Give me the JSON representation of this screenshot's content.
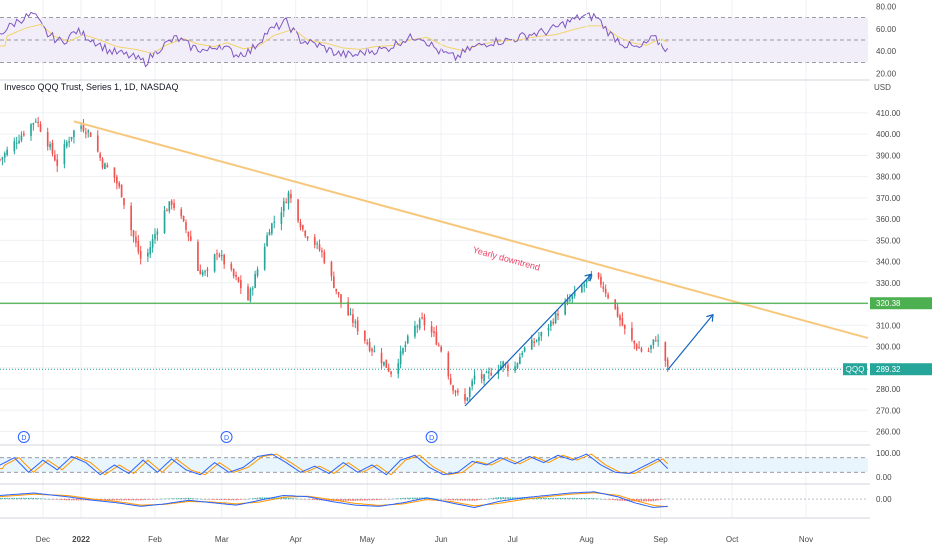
{
  "header": {
    "title": "Invesco QQQ Trust, Series 1, 1D, NASDAQ",
    "currency": "USD"
  },
  "colors": {
    "up": "#26a69a",
    "down": "#ef5350",
    "trendline": "#f7c77b",
    "support": "#4caf50",
    "arrow": "#1565c0",
    "rsi": "#7e57c2",
    "rsi_ma": "#f2d36b",
    "stoch_k": "#2962ff",
    "stoch_d": "#ff9800",
    "annotation": "#e8476a"
  },
  "chart_data": {
    "type": "candlestick",
    "title": "Invesco QQQ Trust, Series 1, 1D, NASDAQ",
    "symbol": "QQQ",
    "y_unit": "USD",
    "x_ticks": [
      "Dec",
      "2022",
      "Feb",
      "Mar",
      "Apr",
      "May",
      "Jun",
      "Jul",
      "Aug",
      "Sep",
      "Oct",
      "Nov"
    ],
    "x_tick_days": [
      -16,
      0,
      31,
      59,
      90,
      120,
      151,
      181,
      212,
      243,
      273,
      304
    ],
    "y_ticks": [
      410,
      400,
      390,
      380,
      370,
      360,
      350,
      340,
      330,
      320,
      310,
      300,
      290,
      280,
      270,
      260
    ],
    "ylim": [
      256,
      417
    ],
    "xlim_days": [
      -34,
      330
    ],
    "price_anchors": [
      [
        -34,
        388
      ],
      [
        -28,
        396
      ],
      [
        -23,
        402
      ],
      [
        -19,
        407
      ],
      [
        -14,
        396
      ],
      [
        -10,
        386
      ],
      [
        -6,
        396
      ],
      [
        -1,
        405
      ],
      [
        4,
        400
      ],
      [
        9,
        386
      ],
      [
        13,
        382
      ],
      [
        17,
        372
      ],
      [
        21,
        355
      ],
      [
        26,
        338
      ],
      [
        30,
        350
      ],
      [
        34,
        362
      ],
      [
        38,
        368
      ],
      [
        42,
        360
      ],
      [
        46,
        350
      ],
      [
        49,
        336
      ],
      [
        53,
        334
      ],
      [
        57,
        345
      ],
      [
        62,
        336
      ],
      [
        66,
        330
      ],
      [
        70,
        322
      ],
      [
        75,
        340
      ],
      [
        79,
        356
      ],
      [
        83,
        362
      ],
      [
        87,
        372
      ],
      [
        90,
        364
      ],
      [
        93,
        355
      ],
      [
        97,
        350
      ],
      [
        101,
        344
      ],
      [
        105,
        332
      ],
      [
        110,
        318
      ],
      [
        114,
        312
      ],
      [
        118,
        305
      ],
      [
        121,
        300
      ],
      [
        125,
        295
      ],
      [
        130,
        288
      ],
      [
        134,
        296
      ],
      [
        139,
        308
      ],
      [
        143,
        312
      ],
      [
        148,
        305
      ],
      [
        152,
        296
      ],
      [
        155,
        283
      ],
      [
        158,
        277
      ],
      [
        161,
        274
      ],
      [
        165,
        286
      ],
      [
        169,
        285
      ],
      [
        173,
        289
      ],
      [
        177,
        292
      ],
      [
        181,
        288
      ],
      [
        185,
        298
      ],
      [
        190,
        302
      ],
      [
        195,
        308
      ],
      [
        200,
        316
      ],
      [
        205,
        322
      ],
      [
        210,
        328
      ],
      [
        214,
        333
      ],
      [
        218,
        330
      ],
      [
        222,
        322
      ],
      [
        225,
        315
      ],
      [
        229,
        305
      ],
      [
        233,
        300
      ],
      [
        237,
        296
      ],
      [
        241,
        304
      ],
      [
        244,
        298
      ],
      [
        246,
        289
      ]
    ],
    "trendline_yearly_downtrend": {
      "label": "Yearly downtrend",
      "points": [
        [
          -3,
          406
        ],
        [
          330,
          304
        ]
      ]
    },
    "support_line": {
      "value": 320.38,
      "label": "320.38"
    },
    "last_price": {
      "value": 289.32,
      "label": "289.32",
      "symbol_tag": "QQQ"
    },
    "arrows": [
      {
        "from": [
          161,
          272
        ],
        "to": [
          214,
          334
        ]
      },
      {
        "from": [
          246,
          289
        ],
        "to": [
          265,
          315
        ]
      }
    ],
    "dividend_markers": {
      "label": "D",
      "days": [
        -24,
        61,
        147
      ]
    },
    "rsi": {
      "yticks": [
        80,
        60,
        40,
        20
      ],
      "ylim": [
        16,
        84
      ],
      "upper": 70,
      "mid": 50,
      "lower": 30,
      "anchors": [
        [
          -34,
          56
        ],
        [
          -26,
          68
        ],
        [
          -20,
          73
        ],
        [
          -14,
          55
        ],
        [
          -8,
          48
        ],
        [
          -2,
          58
        ],
        [
          5,
          50
        ],
        [
          12,
          40
        ],
        [
          20,
          36
        ],
        [
          27,
          30
        ],
        [
          33,
          43
        ],
        [
          40,
          52
        ],
        [
          46,
          44
        ],
        [
          53,
          40
        ],
        [
          58,
          46
        ],
        [
          65,
          37
        ],
        [
          71,
          40
        ],
        [
          78,
          57
        ],
        [
          86,
          66
        ],
        [
          92,
          50
        ],
        [
          100,
          45
        ],
        [
          107,
          38
        ],
        [
          114,
          36
        ],
        [
          120,
          40
        ],
        [
          128,
          42
        ],
        [
          135,
          50
        ],
        [
          142,
          54
        ],
        [
          150,
          40
        ],
        [
          157,
          34
        ],
        [
          163,
          42
        ],
        [
          171,
          48
        ],
        [
          180,
          50
        ],
        [
          188,
          55
        ],
        [
          196,
          58
        ],
        [
          204,
          66
        ],
        [
          210,
          71
        ],
        [
          216,
          71
        ],
        [
          222,
          55
        ],
        [
          228,
          46
        ],
        [
          234,
          42
        ],
        [
          240,
          52
        ],
        [
          246,
          41
        ]
      ]
    },
    "stochastic": {
      "yticks": [
        100,
        0
      ],
      "ylim": [
        -20,
        120
      ],
      "upper": 80,
      "lower": 20,
      "anchors": [
        [
          -34,
          50
        ],
        [
          -28,
          80
        ],
        [
          -22,
          20
        ],
        [
          -16,
          70
        ],
        [
          -10,
          30
        ],
        [
          -4,
          85
        ],
        [
          2,
          60
        ],
        [
          8,
          10
        ],
        [
          14,
          50
        ],
        [
          20,
          15
        ],
        [
          26,
          70
        ],
        [
          32,
          20
        ],
        [
          38,
          75
        ],
        [
          44,
          30
        ],
        [
          50,
          10
        ],
        [
          56,
          60
        ],
        [
          62,
          20
        ],
        [
          68,
          40
        ],
        [
          74,
          85
        ],
        [
          80,
          95
        ],
        [
          86,
          60
        ],
        [
          92,
          20
        ],
        [
          98,
          45
        ],
        [
          104,
          15
        ],
        [
          110,
          60
        ],
        [
          116,
          20
        ],
        [
          122,
          50
        ],
        [
          128,
          10
        ],
        [
          134,
          70
        ],
        [
          140,
          90
        ],
        [
          146,
          40
        ],
        [
          152,
          10
        ],
        [
          158,
          20
        ],
        [
          164,
          65
        ],
        [
          170,
          50
        ],
        [
          176,
          80
        ],
        [
          182,
          55
        ],
        [
          188,
          85
        ],
        [
          194,
          60
        ],
        [
          200,
          90
        ],
        [
          206,
          70
        ],
        [
          212,
          95
        ],
        [
          218,
          50
        ],
        [
          224,
          20
        ],
        [
          230,
          15
        ],
        [
          236,
          45
        ],
        [
          242,
          75
        ],
        [
          246,
          35
        ]
      ]
    },
    "macd": {
      "yticks": [
        0.0
      ],
      "ylim": [
        -7,
        5
      ],
      "macd_anchors": [
        [
          -34,
          1.5
        ],
        [
          -20,
          2.5
        ],
        [
          -6,
          1.0
        ],
        [
          5,
          -0.5
        ],
        [
          15,
          -1.5
        ],
        [
          25,
          -3.0
        ],
        [
          35,
          -2.0
        ],
        [
          45,
          -0.5
        ],
        [
          55,
          -1.5
        ],
        [
          65,
          -2.5
        ],
        [
          75,
          -0.5
        ],
        [
          85,
          1.5
        ],
        [
          95,
          1.0
        ],
        [
          105,
          -1.0
        ],
        [
          115,
          -2.5
        ],
        [
          125,
          -3.0
        ],
        [
          135,
          -1.5
        ],
        [
          145,
          0.5
        ],
        [
          155,
          -1.5
        ],
        [
          165,
          -3.5
        ],
        [
          175,
          -1.0
        ],
        [
          185,
          0.5
        ],
        [
          195,
          1.5
        ],
        [
          205,
          2.5
        ],
        [
          215,
          3.0
        ],
        [
          225,
          1.0
        ],
        [
          232,
          -1.5
        ],
        [
          240,
          -3.5
        ],
        [
          246,
          -3.0
        ]
      ],
      "signal_anchors": [
        [
          -34,
          1.0
        ],
        [
          -20,
          2.0
        ],
        [
          -6,
          1.5
        ],
        [
          5,
          0.0
        ],
        [
          15,
          -1.0
        ],
        [
          25,
          -2.5
        ],
        [
          35,
          -2.2
        ],
        [
          45,
          -1.0
        ],
        [
          55,
          -1.2
        ],
        [
          65,
          -2.0
        ],
        [
          75,
          -1.2
        ],
        [
          85,
          0.8
        ],
        [
          95,
          1.2
        ],
        [
          105,
          -0.2
        ],
        [
          115,
          -1.8
        ],
        [
          125,
          -2.6
        ],
        [
          135,
          -2.0
        ],
        [
          145,
          -0.2
        ],
        [
          155,
          -1.0
        ],
        [
          165,
          -2.8
        ],
        [
          175,
          -1.8
        ],
        [
          185,
          -0.2
        ],
        [
          195,
          1.0
        ],
        [
          205,
          2.0
        ],
        [
          215,
          2.6
        ],
        [
          225,
          1.6
        ],
        [
          232,
          -0.5
        ],
        [
          240,
          -2.6
        ],
        [
          246,
          -3.2
        ]
      ]
    }
  }
}
